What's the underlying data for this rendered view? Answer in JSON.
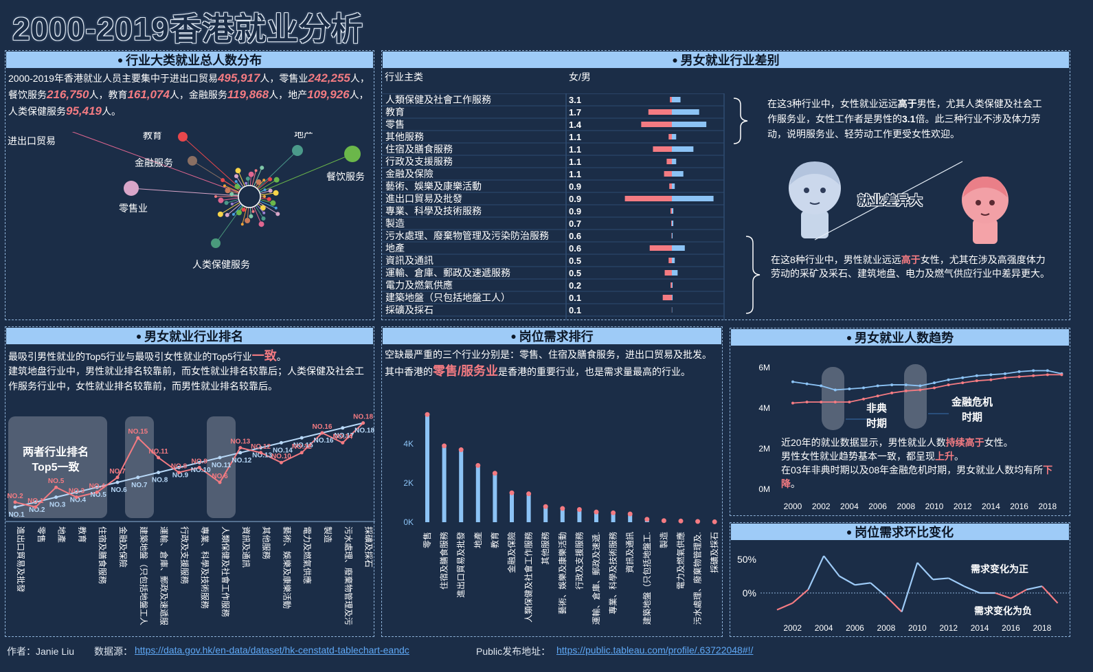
{
  "title": "2000-2019香港就业分析",
  "p1": {
    "title": "行业大类就业总人数分布",
    "d": [
      "2000-2019年香港就业人员主要集中于进出口贸易",
      "495,917",
      "人，零售业",
      "242,255",
      "人，餐饮服务",
      "216,750",
      "人，教育",
      "161,074",
      "人，金融服务",
      "119,868",
      "人，地产",
      "109,926",
      "人，人类保健服务",
      "95,419",
      "人。"
    ],
    "labels": [
      "进出口贸易",
      "教育",
      "地产",
      "金融服务",
      "餐饮服务",
      "零售业",
      "人类保健服务"
    ],
    "colors": {
      "trade": "#e06690",
      "edu": "#e8474c",
      "estate": "#4b9a8a",
      "fin": "#8a6f63",
      "food": "#6bb74a",
      "retail": "#d9a6c9",
      "health": "#4a9a7c"
    }
  },
  "p2": {
    "title": "男女就业行业差别",
    "col1": "行业主类",
    "col2": "女/男",
    "rows": [
      [
        "人類保健及社會工作服務",
        "3.1"
      ],
      [
        "教育",
        "1.7"
      ],
      [
        "零售",
        "1.4"
      ],
      [
        "其他服務",
        "1.1"
      ],
      [
        "住宿及膳食服務",
        "1.1"
      ],
      [
        "行政及支援服務",
        "1.1"
      ],
      [
        "金融及保險",
        "1.1"
      ],
      [
        "藝術、娛樂及康樂活動",
        "0.9"
      ],
      [
        "進出口貿易及批發",
        "0.9"
      ],
      [
        "專業、科學及技術服務",
        "0.9"
      ],
      [
        "製造",
        "0.7"
      ],
      [
        "污水處理、廢棄物管理及污染防治服務",
        "0.6"
      ],
      [
        "地產",
        "0.6"
      ],
      [
        "資訊及通訊",
        "0.5"
      ],
      [
        "運輸、倉庫、郵政及速遞服務",
        "0.5"
      ],
      [
        "電力及燃氣供應",
        "0.2"
      ],
      [
        "建築地盤（只包括地盤工人）",
        "0.1"
      ],
      [
        "採礦及採石",
        "0.1"
      ]
    ],
    "bars": [
      [
        0.6,
        0.3
      ],
      [
        1.9,
        3.6
      ],
      [
        2.4,
        4.7
      ],
      [
        0.3,
        0.5
      ],
      [
        1.5,
        2.9
      ],
      [
        0.3,
        0.8
      ],
      [
        0.8,
        1.2
      ],
      [
        0.2,
        0.4
      ],
      [
        2.9,
        7.2
      ],
      [
        0.1,
        0.2
      ],
      [
        0.1,
        0.1
      ],
      [
        0.05,
        0.05
      ],
      [
        0.9,
        3.4
      ],
      [
        0.2,
        0.5
      ],
      [
        0.4,
        1.1
      ],
      [
        0.05,
        0.2
      ],
      [
        0.05,
        1.4
      ],
      [
        0.02,
        0.02
      ]
    ],
    "a1": "在这3种行业中，女性就业远远",
    "a1b": "高于",
    "a1c": "男性，尤其人类保健及社会工作服务业，女性工作者是男性的",
    "a1d": "3.1",
    "a1e": "倍。此三种行业不涉及体力劳动，说明服务业、轻劳动工作更受女性欢迎。",
    "mid": "就业差异大",
    "a2": "在这8种行业中，男性就业远远",
    "a2b": "高于",
    "a2c": "女性，尤其在涉及高强度体力劳动的采矿及采石、建筑地盘、电力及燃气供应行业中差异更大。"
  },
  "p3": {
    "title": "男女就业行业排名",
    "t1": "最吸引男性就业的Top5行业与最吸引女性就业的Top5行业",
    "t1b": "一致",
    "t1c": "。",
    "t2": "建筑地盘行业中，男性就业排名较靠前，而女性就业排名较靠后；人类保健及社会工作服务行业中，女性就业排名较靠前，而男性就业排名较靠后。",
    "box": "两者行业排名Top5一致",
    "cats": [
      "進出口貿易及批發",
      "零售",
      "地產",
      "教育",
      "住宿及膳食服務",
      "金融及保險",
      "建築地盤（只包括地盤工人...",
      "運輸、倉庫、郵政及速遞服...",
      "行政及支援服務",
      "專業、科學及技術服務",
      "人類保健及社會工作服務",
      "資訊及通訊",
      "其他服務",
      "藝術、娛樂及康樂活動",
      "電力及燃氣供應",
      "製造",
      "污水處理、廢棄物管理及污...",
      "採礦及採石"
    ],
    "male": [
      1,
      2,
      3,
      4,
      5,
      6,
      7,
      8,
      9,
      10,
      11,
      12,
      13,
      14,
      15,
      16,
      17,
      18
    ],
    "female": [
      2,
      1,
      5,
      3,
      4,
      7,
      15,
      11,
      8,
      9,
      6,
      13,
      12,
      10,
      12,
      16,
      14,
      18
    ]
  },
  "p4": {
    "title": "岗位需求排行",
    "t1": "空缺最严重的三个行业分别是：零售、住宿及膳食服务，进出口贸易及批发。其中香港的",
    "t1b": "零售/服务业",
    "t1c": "是香港的重要行业，也是需求量最高的行业。",
    "ticks": [
      "0K",
      "2K",
      "4K"
    ],
    "cats": [
      "零售",
      "住宿及膳食服務",
      "進出口貿易及批發",
      "地產",
      "教育",
      "金融及保險",
      "人類保健及社會工作服務",
      "其他服務",
      "藝術、娛樂及康樂活動",
      "行政及支援服務",
      "運輸、倉庫、郵政及速遞...",
      "專業、科學及技術服務",
      "資訊及通訊",
      "建築地盤（只包括地盤工...",
      "製造",
      "電力及燃氣供應",
      "污水處理、廢棄物管理及...",
      "採礦及採石"
    ],
    "values": [
      5500,
      3900,
      3700,
      2900,
      2500,
      1500,
      1450,
      800,
      700,
      650,
      520,
      480,
      420,
      150,
      80,
      60,
      40,
      20
    ]
  },
  "p5": {
    "title": "男女就业人数趋势",
    "yt": [
      "0M",
      "2M",
      "4M",
      "6M"
    ],
    "xt": [
      "2000",
      "2002",
      "2004",
      "2006",
      "2008",
      "2010",
      "2012",
      "2014",
      "2016",
      "2018"
    ],
    "years": [
      2000,
      2001,
      2002,
      2003,
      2004,
      2005,
      2006,
      2007,
      2008,
      2009,
      2010,
      2011,
      2012,
      2013,
      2014,
      2015,
      2016,
      2017,
      2018,
      2019
    ],
    "male": [
      5.3,
      5.2,
      5.1,
      4.9,
      4.95,
      5.0,
      5.1,
      5.15,
      5.15,
      5.1,
      5.25,
      5.4,
      5.5,
      5.6,
      5.65,
      5.7,
      5.8,
      5.85,
      5.85,
      5.7
    ],
    "female": [
      4.25,
      4.3,
      4.3,
      4.3,
      4.3,
      4.45,
      4.6,
      4.75,
      4.85,
      4.9,
      5.0,
      5.15,
      5.25,
      5.35,
      5.4,
      5.5,
      5.55,
      5.6,
      5.65,
      5.65
    ],
    "l1": "非典",
    "l1b": "时期",
    "l2": "金融危机",
    "l2b": "时期",
    "n1": "近20年的就业数据显示，男性就业人数",
    "n1b": "持续高于",
    "n1c": "女性。",
    "n2": "男性女性就业趋势基本一致，都呈现",
    "n2b": "上升",
    "n2c": "。",
    "n3": "在03年非典时期以及08年金融危机时期，男女就业人数均有所",
    "n3b": "下降",
    "n3c": "。"
  },
  "p6": {
    "title": "岗位需求环比变化",
    "yt": [
      "0%",
      "50%"
    ],
    "xt": [
      "2002",
      "2004",
      "2006",
      "2008",
      "2010",
      "2012",
      "2014",
      "2016",
      "2018"
    ],
    "years": [
      2001,
      2002,
      2003,
      2004,
      2005,
      2006,
      2007,
      2008,
      2009,
      2010,
      2011,
      2012,
      2013,
      2014,
      2015,
      2016,
      2017,
      2018,
      2019
    ],
    "values": [
      -25,
      -15,
      5,
      55,
      25,
      12,
      15,
      -5,
      -28,
      45,
      20,
      22,
      10,
      0,
      0,
      -8,
      5,
      10,
      -15
    ],
    "pos": "需求变化为正",
    "neg": "需求变化为负"
  },
  "footer": {
    "author": "作者：Janie Liu",
    "src": "数据源：",
    "srcurl": "https://data.gov.hk/en-data/dataset/hk-censtatd-tablechart-eandc",
    "pub": "Public发布地址：",
    "puburl": "https://public.tableau.com/profile/.63722048#!/"
  }
}
